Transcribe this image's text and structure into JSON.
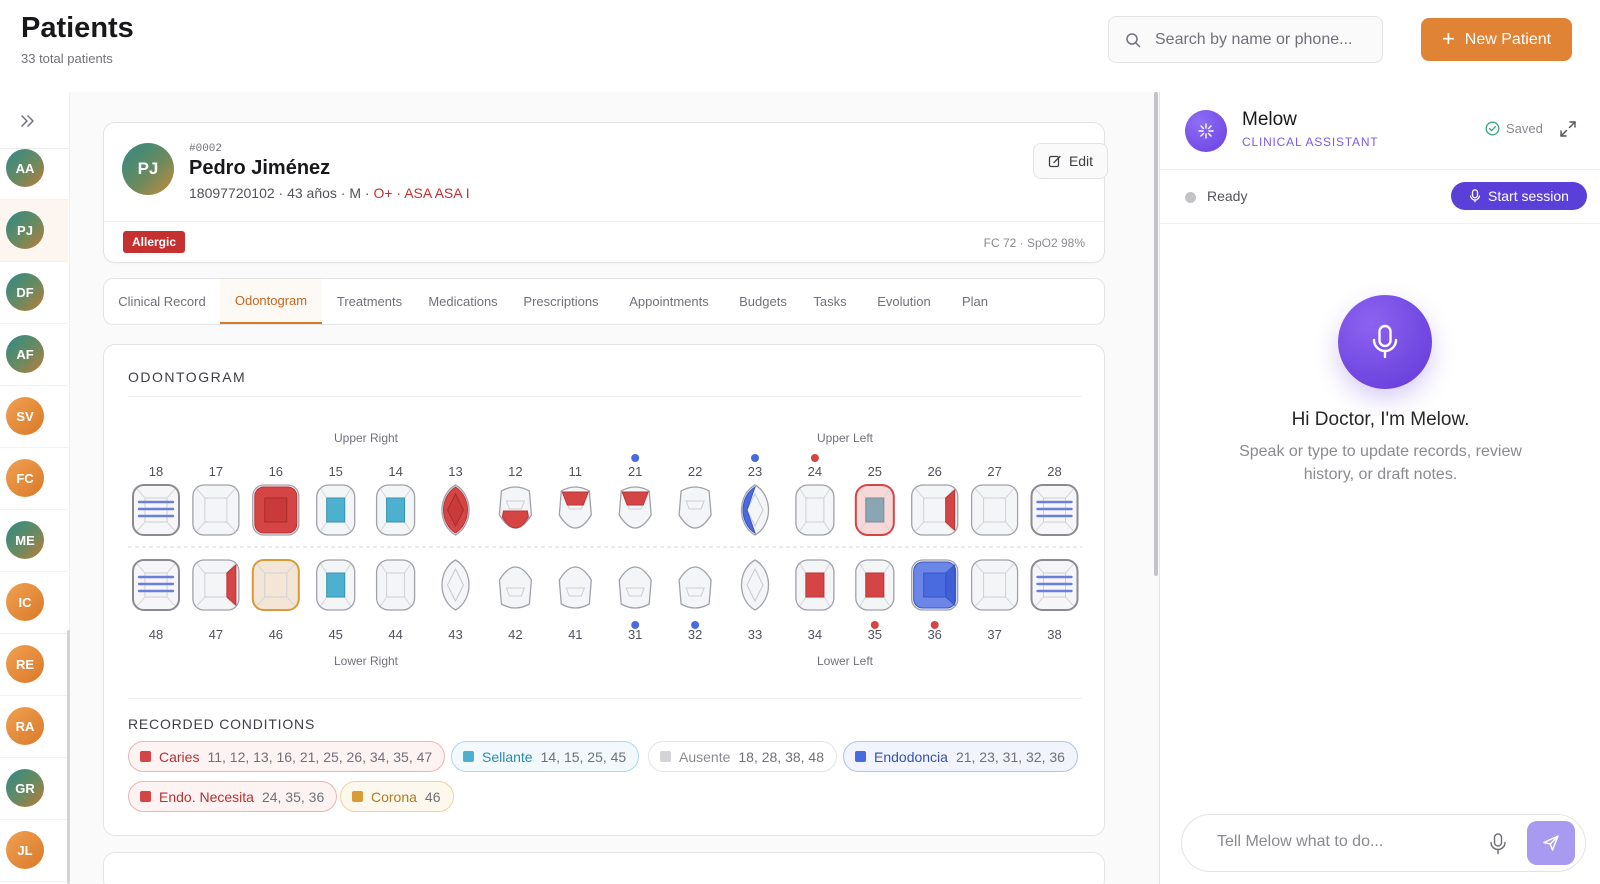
{
  "header": {
    "title": "Patients",
    "subtitle": "33 total patients",
    "search_placeholder": "Search by name or phone...",
    "new_patient_label": "New Patient"
  },
  "rail": {
    "avatars": [
      {
        "initials": "AA",
        "style": "grad"
      },
      {
        "initials": "PJ",
        "style": "grad",
        "active": true
      },
      {
        "initials": "DF",
        "style": "grad"
      },
      {
        "initials": "AF",
        "style": "grad"
      },
      {
        "initials": "SV",
        "style": "orange"
      },
      {
        "initials": "FC",
        "style": "orange"
      },
      {
        "initials": "ME",
        "style": "grad"
      },
      {
        "initials": "IC",
        "style": "orange"
      },
      {
        "initials": "RE",
        "style": "orange"
      },
      {
        "initials": "RA",
        "style": "orange"
      },
      {
        "initials": "GR",
        "style": "grad"
      },
      {
        "initials": "JL",
        "style": "orange"
      }
    ]
  },
  "patient": {
    "initials": "PJ",
    "id": "#0002",
    "name": "Pedro Jiménez",
    "meta_plain": "18097720102 · 43 años · M · ",
    "blood_type": "O+",
    "meta_sep": " · ",
    "asa": "ASA ASA I",
    "edit_label": "Edit",
    "badge": "Allergic",
    "vitals": "FC 72 · SpO2 98%"
  },
  "tabs": [
    {
      "label": "Clinical Record"
    },
    {
      "label": "Odontogram",
      "active": true
    },
    {
      "label": "Treatments"
    },
    {
      "label": "Medications"
    },
    {
      "label": "Prescriptions"
    },
    {
      "label": "Appointments"
    },
    {
      "label": "Budgets"
    },
    {
      "label": "Tasks"
    },
    {
      "label": "Evolution"
    },
    {
      "label": "Plan"
    }
  ],
  "odontogram": {
    "title": "ODONTOGRAM",
    "quadrants": {
      "upper_right": "Upper Right",
      "upper_left": "Upper Left",
      "lower_right": "Lower Right",
      "lower_left": "Lower Left"
    },
    "colors": {
      "caries": "#d64545",
      "sellante": "#4eb0cf",
      "ausente": "#6a80d8",
      "endodoncia": "#4a6be0",
      "endo_necesita": "#d64545",
      "corona": "#d99a38"
    },
    "upper": [
      {
        "num": "18",
        "shape": "molar",
        "cond": "ausente"
      },
      {
        "num": "17",
        "shape": "molar",
        "cond": "none"
      },
      {
        "num": "16",
        "shape": "molar",
        "cond": "caries-full"
      },
      {
        "num": "15",
        "shape": "premolar",
        "cond": "sellante"
      },
      {
        "num": "14",
        "shape": "premolar",
        "cond": "sellante"
      },
      {
        "num": "13",
        "shape": "canine",
        "cond": "caries-diamond"
      },
      {
        "num": "12",
        "shape": "incisor",
        "cond": "caries-bottom"
      },
      {
        "num": "11",
        "shape": "incisor",
        "cond": "caries-top"
      },
      {
        "num": "21",
        "shape": "incisor",
        "cond": "caries-top",
        "dot": "endodoncia"
      },
      {
        "num": "22",
        "shape": "incisor",
        "cond": "none"
      },
      {
        "num": "23",
        "shape": "canine",
        "cond": "endo-left",
        "dot": "endodoncia"
      },
      {
        "num": "24",
        "shape": "premolar",
        "cond": "none",
        "dot": "endo_necesita"
      },
      {
        "num": "25",
        "shape": "premolar",
        "cond": "caries-sellante"
      },
      {
        "num": "26",
        "shape": "molar",
        "cond": "caries-right"
      },
      {
        "num": "27",
        "shape": "molar",
        "cond": "none"
      },
      {
        "num": "28",
        "shape": "molar",
        "cond": "ausente"
      }
    ],
    "lower": [
      {
        "num": "48",
        "shape": "molar",
        "cond": "ausente"
      },
      {
        "num": "47",
        "shape": "molar",
        "cond": "caries-right"
      },
      {
        "num": "46",
        "shape": "molar",
        "cond": "corona"
      },
      {
        "num": "45",
        "shape": "premolar",
        "cond": "sellante"
      },
      {
        "num": "44",
        "shape": "premolar",
        "cond": "none"
      },
      {
        "num": "43",
        "shape": "canine",
        "cond": "none"
      },
      {
        "num": "42",
        "shape": "incisor",
        "cond": "none"
      },
      {
        "num": "41",
        "shape": "incisor",
        "cond": "none"
      },
      {
        "num": "31",
        "shape": "incisor",
        "cond": "none",
        "dot": "endodoncia"
      },
      {
        "num": "32",
        "shape": "incisor",
        "cond": "none",
        "dot": "endodoncia"
      },
      {
        "num": "33",
        "shape": "canine",
        "cond": "none"
      },
      {
        "num": "34",
        "shape": "premolar",
        "cond": "caries-center"
      },
      {
        "num": "35",
        "shape": "premolar",
        "cond": "caries-center",
        "dot": "endo_necesita"
      },
      {
        "num": "36",
        "shape": "molar",
        "cond": "endo-full",
        "dot": "endo_necesita"
      },
      {
        "num": "37",
        "shape": "molar",
        "cond": "none"
      },
      {
        "num": "38",
        "shape": "molar",
        "cond": "ausente"
      }
    ],
    "conditions_title": "RECORDED CONDITIONS",
    "conditions": [
      {
        "label": "Caries",
        "teeth": "11, 12, 13, 16, 21, 25, 26, 34, 35, 47",
        "color": "#d64545",
        "bg": "#fdf3f3",
        "border": "#efb4b4",
        "text": "#b83232"
      },
      {
        "label": "Sellante",
        "teeth": "14, 15, 25, 45",
        "color": "#4eb0cf",
        "bg": "#f1f9fc",
        "border": "#a9d9ea",
        "text": "#2c8bab"
      },
      {
        "label": "Ausente",
        "teeth": "18, 28, 38, 48",
        "color": "#d4d4d8",
        "bg": "#ffffff",
        "border": "#e4e4e7",
        "text": "#8a8a90"
      },
      {
        "label": "Endodoncia",
        "teeth": "21, 23, 31, 32, 36",
        "color": "#4a6be0",
        "bg": "#f1f4fd",
        "border": "#b3c1f1",
        "text": "#3650b8"
      },
      {
        "label": "Endo. Necesita",
        "teeth": "24, 35, 36",
        "color": "#d64545",
        "bg": "#fdf3f3",
        "border": "#efb4b4",
        "text": "#b83232"
      },
      {
        "label": "Corona",
        "teeth": "46",
        "color": "#d99a38",
        "bg": "#fdf8ee",
        "border": "#f0d39e",
        "text": "#b57a1c"
      }
    ]
  },
  "assistant": {
    "name": "Melow",
    "role": "CLINICAL ASSISTANT",
    "saved_label": "Saved",
    "status": "Ready",
    "start_label": "Start session",
    "greeting": "Hi Doctor, I'm Melow.",
    "greeting_sub": "Speak or type to update records, review history, or draft notes.",
    "input_placeholder": "Tell Melow what to do..."
  }
}
